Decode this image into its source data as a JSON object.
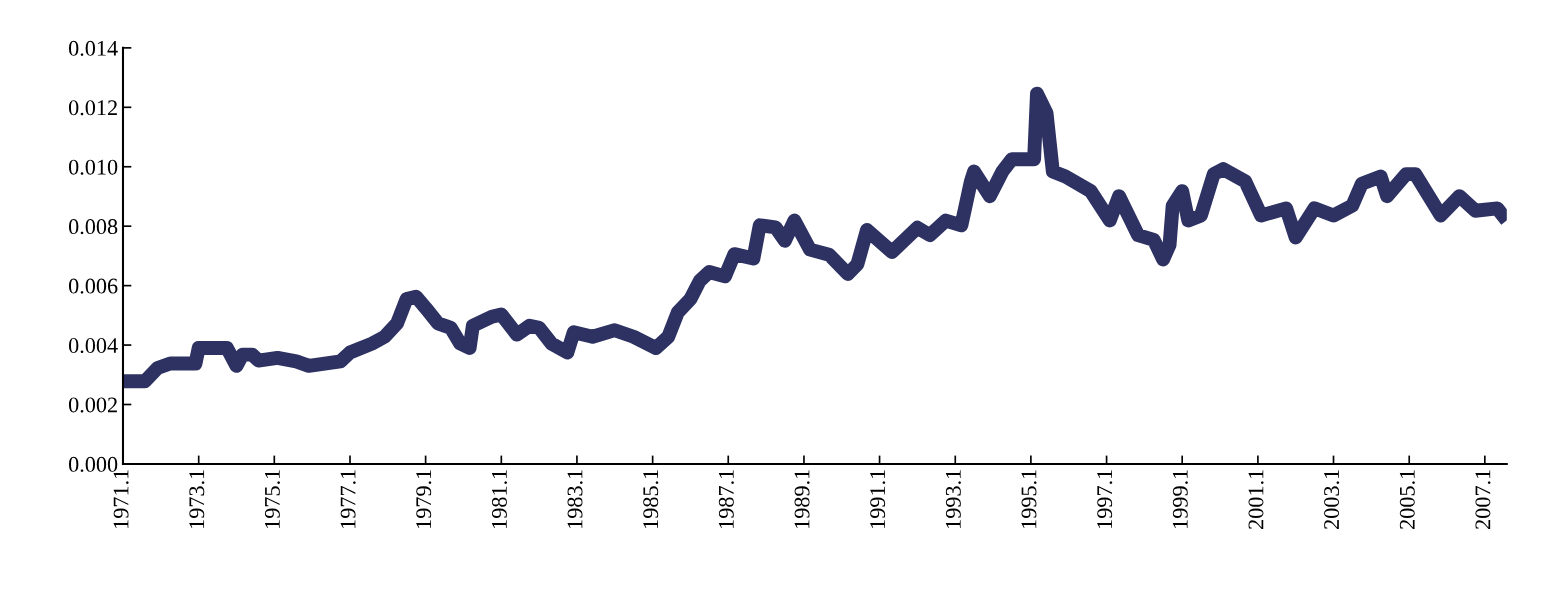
{
  "chart_data": {
    "type": "line",
    "color": "#2e3262",
    "line_style": "solid",
    "x": [
      "1971-01",
      "1971-08",
      "1971-12",
      "1972-04",
      "1972-12",
      "1973-01",
      "1973-10",
      "1974-01",
      "1974-03",
      "1974-06",
      "1974-08",
      "1975-02",
      "1975-08",
      "1975-12",
      "1976-10",
      "1977-01",
      "1977-08",
      "1977-12",
      "1978-04",
      "1978-07",
      "1978-10",
      "1979-01",
      "1979-05",
      "1979-09",
      "1979-12",
      "1980-03",
      "1980-04",
      "1980-10",
      "1981-01",
      "1981-06",
      "1981-10",
      "1982-01",
      "1982-05",
      "1982-10",
      "1982-12",
      "1983-06",
      "1984-01",
      "1984-07",
      "1985-02",
      "1985-06",
      "1985-09",
      "1986-01",
      "1986-04",
      "1986-07",
      "1986-12",
      "1987-03",
      "1987-09",
      "1987-11",
      "1988-04",
      "1988-07",
      "1988-10",
      "1989-03",
      "1989-09",
      "1990-03",
      "1990-06",
      "1990-09",
      "1991-05",
      "1992-01",
      "1992-05",
      "1992-10",
      "1993-03",
      "1993-06",
      "1993-07",
      "1993-12",
      "1994-04",
      "1994-07",
      "1995-02",
      "1995-03",
      "1995-06",
      "1995-08",
      "1995-12",
      "1996-08",
      "1997-02",
      "1997-05",
      "1997-11",
      "1998-04",
      "1998-07",
      "1998-09",
      "1998-10",
      "1999-01",
      "1999-03",
      "1999-07",
      "1999-11",
      "2000-02",
      "2000-09",
      "2001-02",
      "2001-10",
      "2002-01",
      "2002-07",
      "2003-01",
      "2003-07",
      "2003-10",
      "2004-04",
      "2004-06",
      "2004-12",
      "2005-03",
      "2005-11",
      "2006-05",
      "2006-10",
      "2007-05",
      "2007-08"
    ],
    "values": [
      0.00278,
      0.00278,
      0.00323,
      0.00338,
      0.00338,
      0.0039,
      0.0039,
      0.0033,
      0.00368,
      0.00368,
      0.00348,
      0.00357,
      0.00345,
      0.0033,
      0.00345,
      0.00375,
      0.00405,
      0.00428,
      0.00473,
      0.00555,
      0.00563,
      0.00525,
      0.00473,
      0.00458,
      0.00405,
      0.0039,
      0.00465,
      0.00495,
      0.00503,
      0.00435,
      0.00465,
      0.00458,
      0.00405,
      0.00375,
      0.00443,
      0.00428,
      0.0045,
      0.00428,
      0.0039,
      0.00428,
      0.0051,
      0.00555,
      0.00616,
      0.00646,
      0.00631,
      0.00706,
      0.00691,
      0.00803,
      0.00796,
      0.00751,
      0.00819,
      0.00721,
      0.00704,
      0.00639,
      0.00672,
      0.00787,
      0.00713,
      0.00795,
      0.0077,
      0.00819,
      0.00803,
      0.00951,
      0.00984,
      0.00901,
      0.00984,
      0.01025,
      0.01025,
      0.01246,
      0.01181,
      0.00984,
      0.00967,
      0.00918,
      0.00819,
      0.00901,
      0.0077,
      0.00754,
      0.00688,
      0.00737,
      0.00869,
      0.00918,
      0.00819,
      0.00836,
      0.00975,
      0.00992,
      0.00951,
      0.00836,
      0.0086,
      0.00762,
      0.0086,
      0.00836,
      0.00869,
      0.00943,
      0.00967,
      0.00901,
      0.00975,
      0.00975,
      0.00836,
      0.00901,
      0.00852,
      0.0086,
      0.00819
    ],
    "xlim": [
      "1971-01",
      "2007-08"
    ],
    "ylim": [
      0,
      0.014
    ],
    "xticks": [
      {
        "value": "1971-01",
        "label": "1971.1"
      },
      {
        "value": "1973-01",
        "label": "1973.1"
      },
      {
        "value": "1975-01",
        "label": "1975.1"
      },
      {
        "value": "1977-01",
        "label": "1977.1"
      },
      {
        "value": "1979-01",
        "label": "1979.1"
      },
      {
        "value": "1981-01",
        "label": "1981.1"
      },
      {
        "value": "1983-01",
        "label": "1983.1"
      },
      {
        "value": "1985-01",
        "label": "1985.1"
      },
      {
        "value": "1987-01",
        "label": "1987.1"
      },
      {
        "value": "1989-01",
        "label": "1989.1"
      },
      {
        "value": "1991-01",
        "label": "1991.1"
      },
      {
        "value": "1993-01",
        "label": "1993.1"
      },
      {
        "value": "1995-01",
        "label": "1995.1"
      },
      {
        "value": "1997-01",
        "label": "1997.1"
      },
      {
        "value": "1999-01",
        "label": "1999.1"
      },
      {
        "value": "2001-01",
        "label": "2001.1"
      },
      {
        "value": "2003-01",
        "label": "2003.1"
      },
      {
        "value": "2005-01",
        "label": "2005.1"
      },
      {
        "value": "2007-01",
        "label": "2007.1"
      }
    ],
    "yticks": [
      {
        "value": 0,
        "label": "0.000"
      },
      {
        "value": 0.002,
        "label": "0.002"
      },
      {
        "value": 0.004,
        "label": "0.004"
      },
      {
        "value": 0.006,
        "label": "0.006"
      },
      {
        "value": 0.008,
        "label": "0.008"
      },
      {
        "value": 0.01,
        "label": "0.010"
      },
      {
        "value": 0.012,
        "label": "0.012"
      },
      {
        "value": 0.014,
        "label": "0.014"
      }
    ]
  }
}
